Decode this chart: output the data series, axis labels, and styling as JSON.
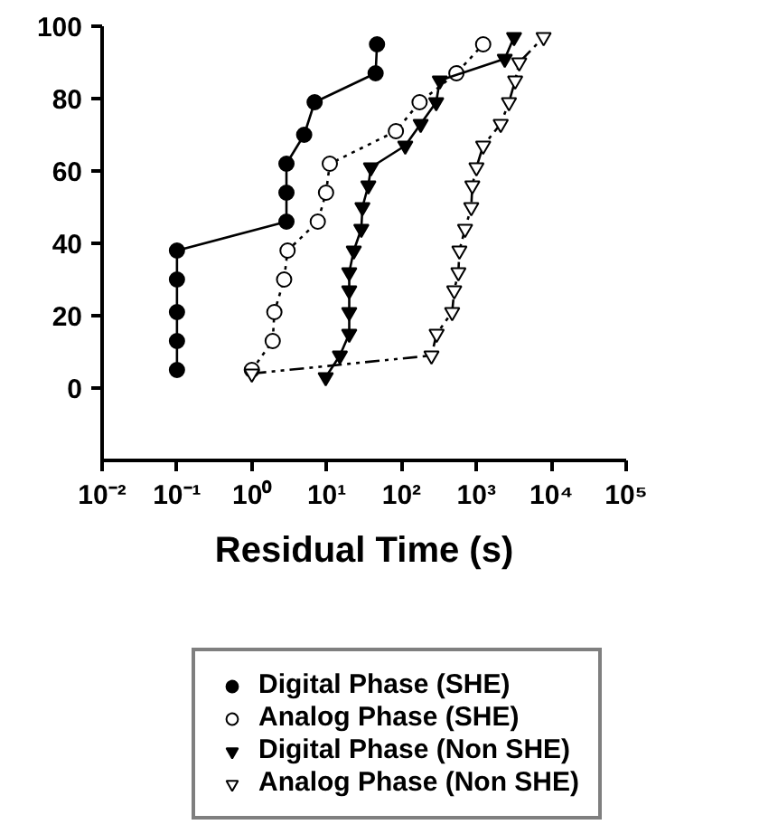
{
  "chart_data": {
    "type": "line",
    "xlabel": "Residual Time (s)",
    "log": "x",
    "xlim": [
      0.01,
      100000
    ],
    "xticks": [
      {
        "value": 0.01,
        "label": "10⁻²"
      },
      {
        "value": 0.1,
        "label": "10⁻¹"
      },
      {
        "value": 1,
        "label": "10⁰"
      },
      {
        "value": 10,
        "label": "10¹"
      },
      {
        "value": 100,
        "label": "10²"
      },
      {
        "value": 1000,
        "label": "10³"
      },
      {
        "value": 10000,
        "label": "10⁴"
      },
      {
        "value": 100000,
        "label": "10⁵"
      }
    ],
    "ylim": [
      -20,
      100
    ],
    "yticks": [
      0,
      20,
      40,
      60,
      80,
      100
    ],
    "grid": false,
    "legend": "bottom",
    "series": [
      {
        "name": "Digital Phase (SHE)",
        "color": "#000000",
        "marker": "circle",
        "line_style": "solid",
        "x": [
          0.1,
          0.1,
          0.1,
          0.1,
          0.1,
          2.9,
          2.9,
          2.9,
          5.0,
          6.9,
          45,
          47
        ],
        "values": [
          5,
          13,
          21,
          30,
          38,
          46,
          54,
          62,
          70,
          79,
          87,
          95
        ]
      },
      {
        "name": "Analog Phase (SHE)",
        "color": "#ffffff",
        "marker": "circle",
        "line_style": "dotted",
        "x": [
          1.0,
          1.9,
          2.0,
          2.7,
          3.0,
          7.6,
          9.8,
          11,
          84,
          174,
          540,
          1230
        ],
        "values": [
          5,
          13,
          21,
          30,
          38,
          46,
          54,
          62,
          71,
          79,
          87,
          95
        ]
      },
      {
        "name": "Digital Phase (Non SHE)",
        "color": "#000000",
        "marker": "triangle",
        "line_style": "solid",
        "x": [
          9.7,
          15,
          20,
          20,
          20,
          20,
          23,
          29,
          30,
          36,
          39,
          112,
          180,
          290,
          324,
          2390,
          3180
        ],
        "values": [
          3,
          9,
          15,
          21,
          27,
          32,
          38,
          44,
          50,
          56,
          61,
          67,
          73,
          79,
          85,
          91,
          97
        ]
      },
      {
        "name": "Analog Phase (Non SHE)",
        "color": "#ffffff",
        "marker": "triangle",
        "line_style": "dashed",
        "x": [
          1.0,
          251,
          294,
          474,
          505,
          574,
          592,
          705,
          853,
          881,
          1000,
          1230,
          2110,
          2720,
          3290,
          3730,
          7890
        ],
        "values": [
          4,
          9,
          15,
          21,
          27,
          32,
          38,
          44,
          50,
          56,
          61,
          67,
          73,
          79,
          85,
          90,
          97
        ]
      }
    ]
  }
}
